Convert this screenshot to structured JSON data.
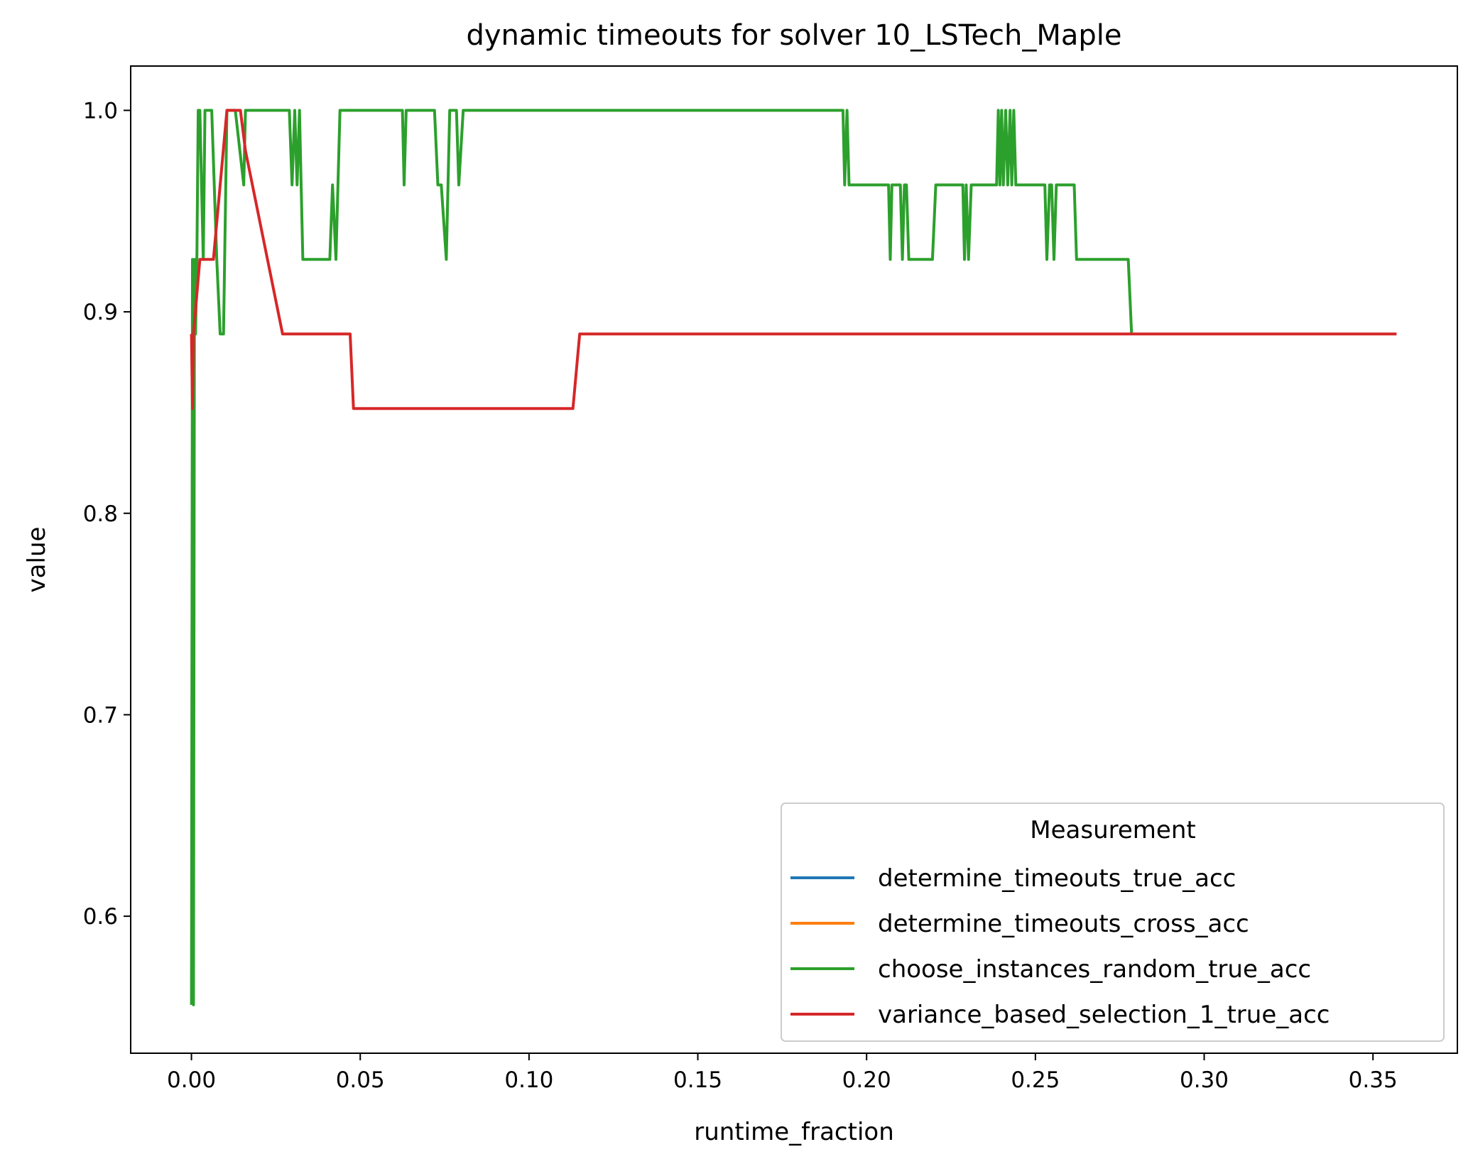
{
  "chart_data": {
    "type": "line",
    "title": "dynamic timeouts for solver 10_LSTech_Maple",
    "xlabel": "runtime_fraction",
    "ylabel": "value",
    "xlim": [
      -0.018,
      0.375
    ],
    "ylim": [
      0.532,
      1.022
    ],
    "xticks": [
      0.0,
      0.05,
      0.1,
      0.15,
      0.2,
      0.25,
      0.3,
      0.35
    ],
    "xtick_labels": [
      "0.00",
      "0.05",
      "0.10",
      "0.15",
      "0.20",
      "0.25",
      "0.30",
      "0.35"
    ],
    "yticks": [
      0.6,
      0.7,
      0.8,
      0.9,
      1.0
    ],
    "ytick_labels": [
      "0.6",
      "0.7",
      "0.8",
      "0.9",
      "1.0"
    ],
    "legend": {
      "title": "Measurement",
      "position": "lower-right"
    },
    "series": [
      {
        "name": "determine_timeouts_true_acc",
        "color": "#1f77b4",
        "x": [],
        "y": []
      },
      {
        "name": "determine_timeouts_cross_acc",
        "color": "#ff7f0e",
        "x": [],
        "y": []
      },
      {
        "name": "choose_instances_random_true_acc",
        "color": "#2ca02c",
        "x": [
          0.0,
          0.0003,
          0.0006,
          0.0009,
          0.0012,
          0.0016,
          0.002,
          0.0025,
          0.0035,
          0.004,
          0.006,
          0.0075,
          0.0085,
          0.0095,
          0.0105,
          0.0115,
          0.0125,
          0.013,
          0.0155,
          0.016,
          0.017,
          0.018,
          0.029,
          0.0298,
          0.0306,
          0.0313,
          0.032,
          0.0325,
          0.033,
          0.034,
          0.035,
          0.041,
          0.0418,
          0.0428,
          0.044,
          0.045,
          0.046,
          0.0625,
          0.063,
          0.0636,
          0.064,
          0.072,
          0.073,
          0.074,
          0.0755,
          0.0765,
          0.0785,
          0.0792,
          0.0805,
          0.081,
          0.193,
          0.1935,
          0.1942,
          0.1948,
          0.1955,
          0.1962,
          0.2065,
          0.207,
          0.2075,
          0.208,
          0.21,
          0.2106,
          0.2112,
          0.2118,
          0.2125,
          0.2195,
          0.2205,
          0.2285,
          0.229,
          0.2295,
          0.2302,
          0.231,
          0.2385,
          0.239,
          0.2395,
          0.24,
          0.2405,
          0.2412,
          0.2418,
          0.2425,
          0.243,
          0.2436,
          0.2442,
          0.2448,
          0.2452,
          0.2458,
          0.2465,
          0.2528,
          0.2534,
          0.2542,
          0.2548,
          0.2555,
          0.2562,
          0.2568,
          0.2575,
          0.2615,
          0.2622,
          0.2635,
          0.2775,
          0.2785
        ],
        "y": [
          0.556,
          0.926,
          0.556,
          0.926,
          0.889,
          0.926,
          1.0,
          1.0,
          0.926,
          1.0,
          1.0,
          0.926,
          0.889,
          0.889,
          1.0,
          1.0,
          1.0,
          1.0,
          0.963,
          1.0,
          1.0,
          1.0,
          1.0,
          0.963,
          1.0,
          0.963,
          1.0,
          0.963,
          0.926,
          0.926,
          0.926,
          0.926,
          0.963,
          0.926,
          1.0,
          1.0,
          1.0,
          1.0,
          0.963,
          1.0,
          1.0,
          1.0,
          0.963,
          0.963,
          0.926,
          1.0,
          1.0,
          0.963,
          1.0,
          1.0,
          1.0,
          0.963,
          1.0,
          0.963,
          0.963,
          0.963,
          0.963,
          0.926,
          0.963,
          0.963,
          0.963,
          0.926,
          0.963,
          0.963,
          0.926,
          0.926,
          0.963,
          0.963,
          0.926,
          0.963,
          0.926,
          0.963,
          0.963,
          1.0,
          0.963,
          1.0,
          0.963,
          1.0,
          0.963,
          1.0,
          0.963,
          1.0,
          0.963,
          0.963,
          0.963,
          0.963,
          0.963,
          0.963,
          0.926,
          0.963,
          0.963,
          0.926,
          0.963,
          0.963,
          0.963,
          0.963,
          0.926,
          0.926,
          0.926,
          0.889
        ]
      },
      {
        "name": "variance_based_selection_1_true_acc",
        "color": "#d62728",
        "x": [
          0.0,
          0.0003,
          0.0006,
          0.0025,
          0.0035,
          0.0065,
          0.0105,
          0.0115,
          0.0145,
          0.016,
          0.027,
          0.047,
          0.048,
          0.113,
          0.115,
          0.357
        ],
        "y": [
          0.889,
          0.852,
          0.889,
          0.926,
          0.926,
          0.926,
          1.0,
          1.0,
          1.0,
          0.98,
          0.889,
          0.889,
          0.852,
          0.852,
          0.889,
          0.889
        ]
      }
    ]
  }
}
